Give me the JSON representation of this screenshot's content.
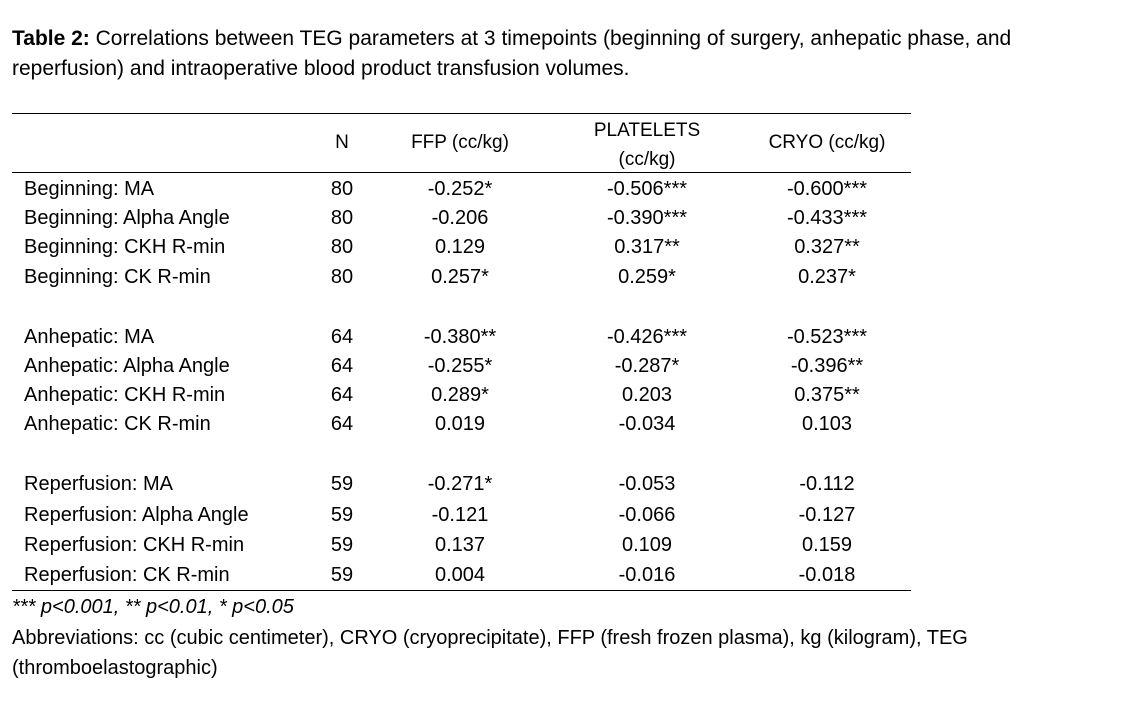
{
  "caption": {
    "label": "Table 2:",
    "text": "Correlations between TEG parameters at 3 timepoints (beginning of surgery, anhepatic phase, and reperfusion) and intraoperative blood product transfusion volumes."
  },
  "table": {
    "headers": {
      "n": "N",
      "ffp": "FFP (cc/kg)",
      "platelets_line1": "PLATELETS",
      "platelets_line2": "(cc/kg)",
      "cryo": "CRYO (cc/kg)"
    },
    "rows": [
      {
        "label": "Beginning: MA",
        "n": "80",
        "ffp": "-0.252*",
        "platelets": "-0.506***",
        "cryo": "-0.600***"
      },
      {
        "label": "Beginning: Alpha Angle",
        "n": "80",
        "ffp": "-0.206",
        "platelets": "-0.390***",
        "cryo": "-0.433***"
      },
      {
        "label": "Beginning: CKH R-min",
        "n": "80",
        "ffp": "0.129",
        "platelets": "0.317**",
        "cryo": "0.327**"
      },
      {
        "label": "Beginning: CK R-min",
        "n": "80",
        "ffp": "0.257*",
        "platelets": "0.259*",
        "cryo": "0.237*"
      },
      {
        "label": "Anhepatic: MA",
        "n": "64",
        "ffp": "-0.380**",
        "platelets": "-0.426***",
        "cryo": "-0.523***"
      },
      {
        "label": "Anhepatic: Alpha Angle",
        "n": "64",
        "ffp": "-0.255*",
        "platelets": "-0.287*",
        "cryo": "-0.396**"
      },
      {
        "label": "Anhepatic: CKH R-min",
        "n": "64",
        "ffp": "0.289*",
        "platelets": "0.203",
        "cryo": "0.375**"
      },
      {
        "label": "Anhepatic: CK R-min",
        "n": "64",
        "ffp": "0.019",
        "platelets": "-0.034",
        "cryo": "0.103"
      },
      {
        "label": "Reperfusion: MA",
        "n": "59",
        "ffp": "-0.271*",
        "platelets": "-0.053",
        "cryo": "-0.112"
      },
      {
        "label": "Reperfusion: Alpha Angle",
        "n": "59",
        "ffp": "-0.121",
        "platelets": "-0.066",
        "cryo": "-0.127"
      },
      {
        "label": "Reperfusion: CKH R-min",
        "n": "59",
        "ffp": "0.137",
        "platelets": "0.109",
        "cryo": "0.159"
      },
      {
        "label": "Reperfusion: CK R-min",
        "n": "59",
        "ffp": "0.004",
        "platelets": "-0.016",
        "cryo": "-0.018"
      }
    ]
  },
  "footnote": "*** p<0.001, ** p<0.01, * p<0.05",
  "abbreviations": "Abbreviations: cc (cubic centimeter), CRYO (cryoprecipitate), FFP (fresh frozen plasma), kg (kilogram), TEG (thromboelastographic)"
}
